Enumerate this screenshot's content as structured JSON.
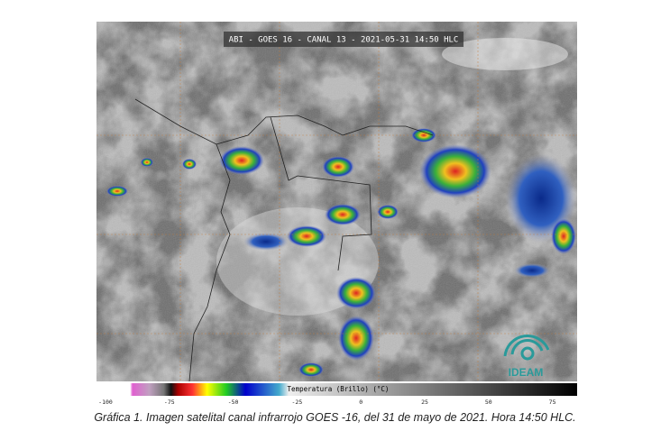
{
  "header": {
    "title": "ABI - GOES 16 - CANAL 13 - 2021-05-31 14:50 HLC"
  },
  "logo": {
    "text": "IDEAM"
  },
  "colorbar": {
    "label": "Temperatura (Brillo) (°C)",
    "ticks": [
      -100,
      -75,
      -50,
      -25,
      0,
      25,
      50,
      75
    ]
  },
  "caption": "Gráfica 1. Imagen satelital canal infrarrojo GOES -16, del 31 de mayo de 2021. Hora 14:50 HLC."
}
